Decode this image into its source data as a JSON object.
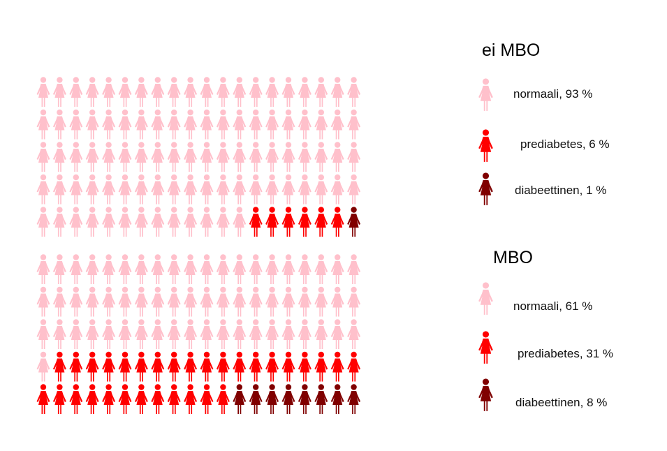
{
  "chart_data": [
    {
      "type": "waffle",
      "title": "ei MBO",
      "series": [
        {
          "name": "normaali",
          "label": "normaali, 93 %",
          "value": 93,
          "color": "#ffc0cb"
        },
        {
          "name": "prediabetes",
          "label": "prediabetes, 6 %",
          "value": 6,
          "color": "#ff0000"
        },
        {
          "name": "diabeettinen",
          "label": "diabeettinen, 1 %",
          "value": 1,
          "color": "#800000"
        }
      ]
    },
    {
      "type": "waffle",
      "title": "MBO",
      "series": [
        {
          "name": "normaali",
          "label": "normaali, 61 %",
          "value": 61,
          "color": "#ffc0cb"
        },
        {
          "name": "prediabetes",
          "label": "prediabetes, 31 %",
          "value": 31,
          "color": "#ff0000"
        },
        {
          "name": "diabeettinen",
          "label": "diabeettinen, 8 %",
          "value": 8,
          "color": "#800000"
        }
      ]
    }
  ],
  "icon": "woman-icon"
}
